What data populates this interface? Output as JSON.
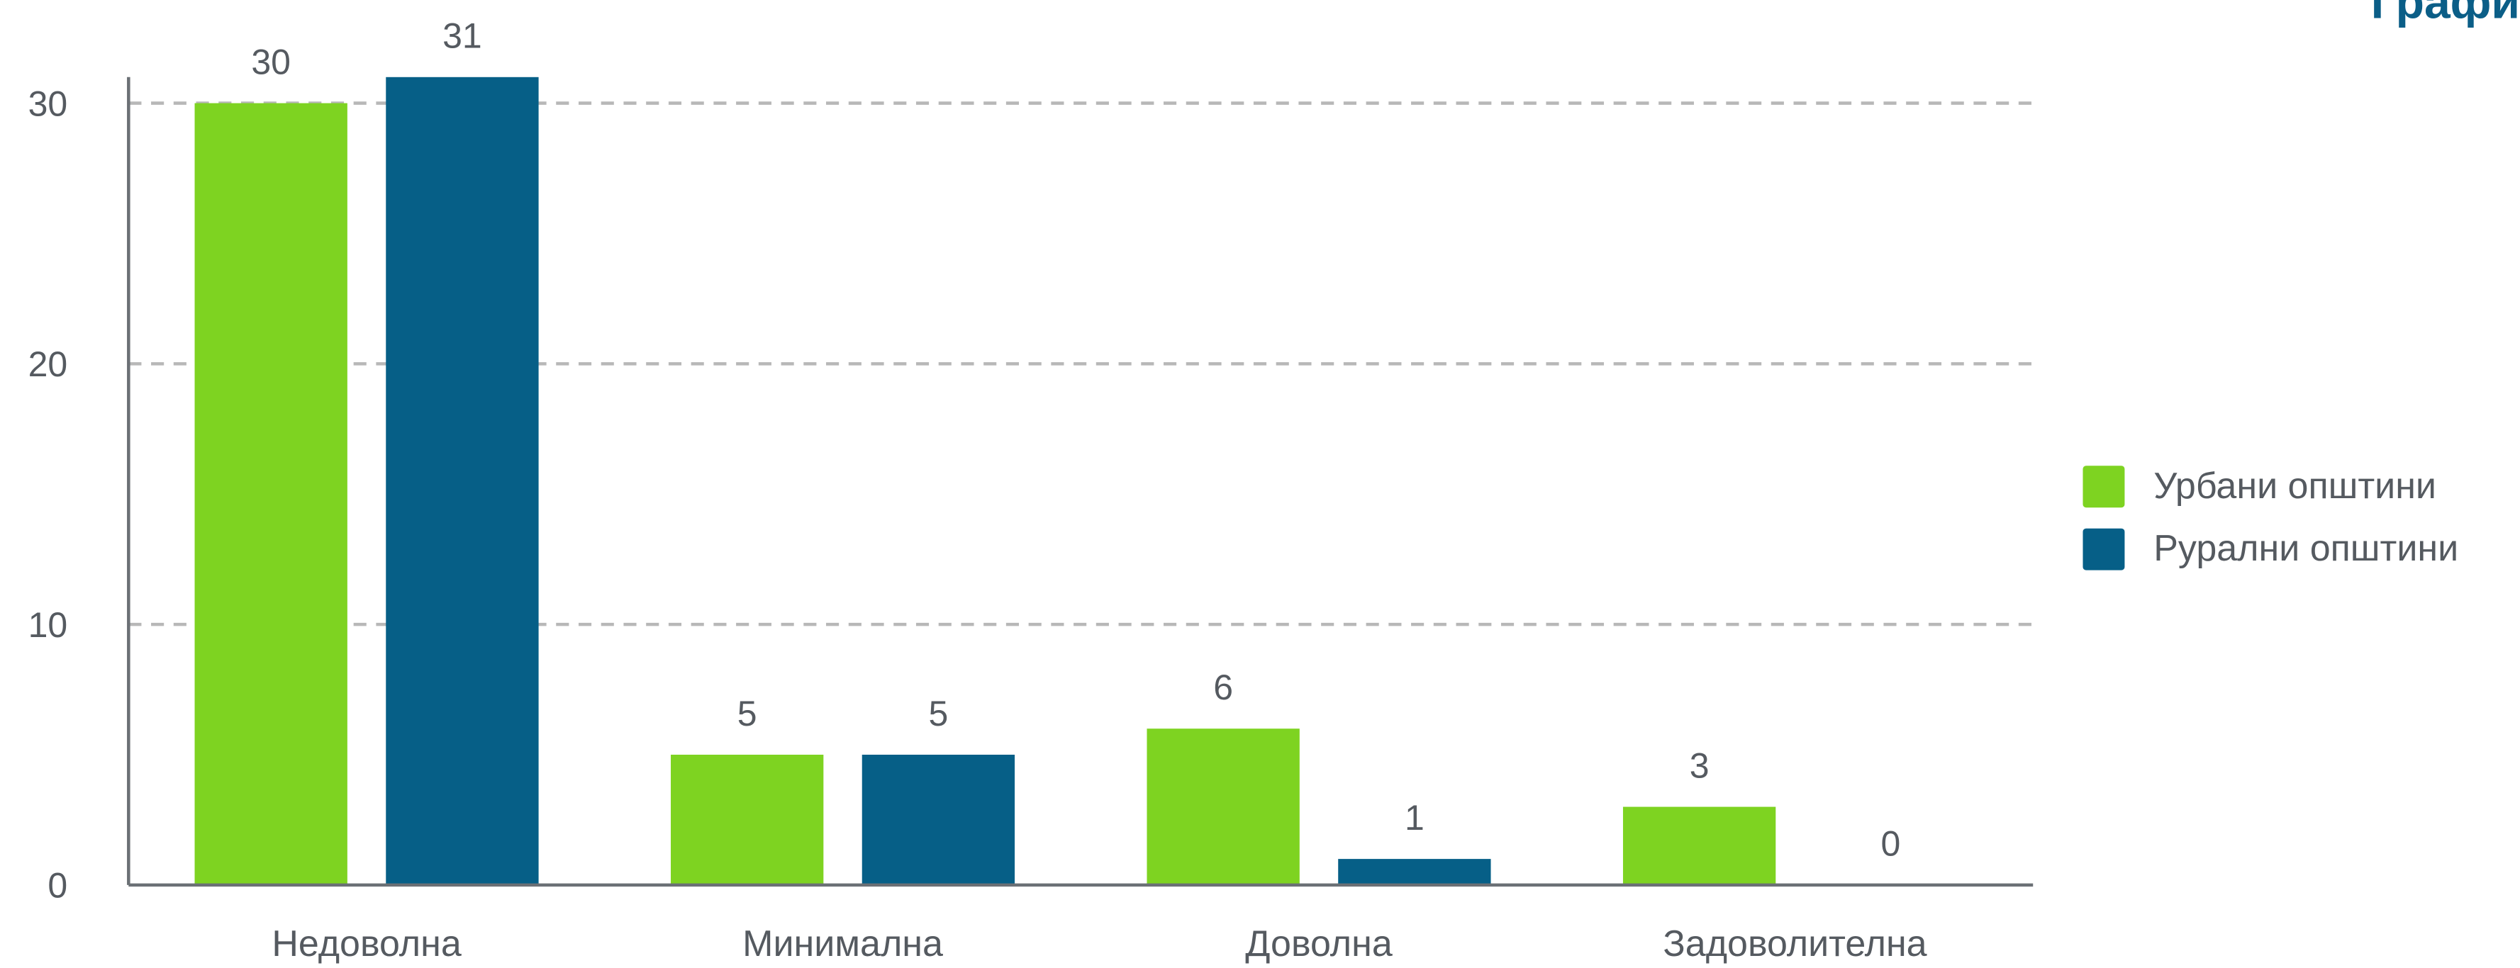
{
  "chart_data": {
    "type": "bar",
    "title": "Графи",
    "categories": [
      "Недоволна",
      "Минимална",
      "Доволна",
      "Задоволителна"
    ],
    "series": [
      {
        "name": "Урбани општини",
        "color": "#7ed321",
        "values": [
          30,
          5,
          6,
          3
        ]
      },
      {
        "name": "Рурални општини",
        "color": "#065f87",
        "values": [
          31,
          5,
          1,
          0
        ]
      }
    ],
    "ylim": [
      0,
      31
    ],
    "yticks": [
      0,
      10,
      20,
      30
    ],
    "grid": true,
    "legend": "right"
  }
}
